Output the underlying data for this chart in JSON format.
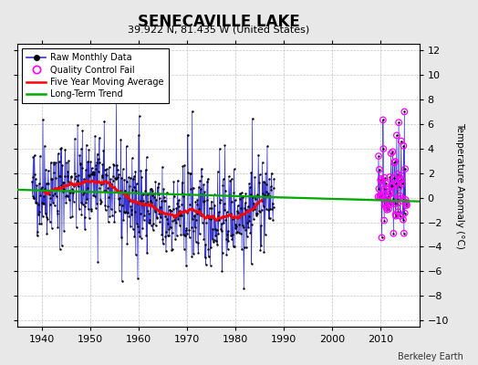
{
  "title": "SENECAVILLE LAKE",
  "subtitle": "39.922 N, 81.435 W (United States)",
  "ylabel": "Temperature Anomaly (°C)",
  "credit": "Berkeley Earth",
  "xlim": [
    1935,
    2018
  ],
  "ylim": [
    -10.5,
    12.5
  ],
  "yticks": [
    -10,
    -8,
    -6,
    -4,
    -2,
    0,
    2,
    4,
    6,
    8,
    10,
    12
  ],
  "xticks": [
    1940,
    1950,
    1960,
    1970,
    1980,
    1990,
    2000,
    2010
  ],
  "bg_color": "#e8e8e8",
  "plot_bg_color": "#ffffff",
  "raw_color": "#3333cc",
  "raw_marker_color": "#000000",
  "qc_color": "#ff00ff",
  "ma_color": "#ff0000",
  "trend_color": "#00aa00",
  "grid_color": "#aaaaaa",
  "seed": 42,
  "figwidth": 5.24,
  "figheight": 4.0,
  "dpi": 100
}
